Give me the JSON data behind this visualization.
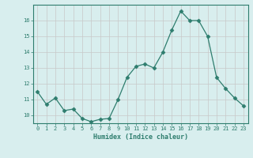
{
  "x": [
    0,
    1,
    2,
    3,
    4,
    5,
    6,
    7,
    8,
    9,
    10,
    11,
    12,
    13,
    14,
    15,
    16,
    17,
    18,
    19,
    20,
    21,
    22,
    23
  ],
  "y": [
    11.5,
    10.7,
    11.1,
    10.3,
    10.4,
    9.8,
    9.6,
    9.75,
    9.8,
    11.0,
    12.4,
    13.1,
    13.25,
    13.0,
    14.0,
    15.4,
    16.6,
    16.0,
    16.0,
    15.0,
    12.4,
    11.7,
    11.1,
    10.6
  ],
  "xlabel": "Humidex (Indice chaleur)",
  "xlim": [
    -0.5,
    23.5
  ],
  "ylim": [
    9.5,
    17.0
  ],
  "yticks": [
    10,
    11,
    12,
    13,
    14,
    15,
    16
  ],
  "xticks": [
    0,
    1,
    2,
    3,
    4,
    5,
    6,
    7,
    8,
    9,
    10,
    11,
    12,
    13,
    14,
    15,
    16,
    17,
    18,
    19,
    20,
    21,
    22,
    23
  ],
  "line_color": "#2e7d6e",
  "marker": "D",
  "marker_size": 2.5,
  "bg_color": "#d8eeee",
  "grid_color": "#c8c8c8",
  "axis_color": "#2e7d6e",
  "tick_color": "#2e7d6e",
  "label_color": "#2e7d6e"
}
